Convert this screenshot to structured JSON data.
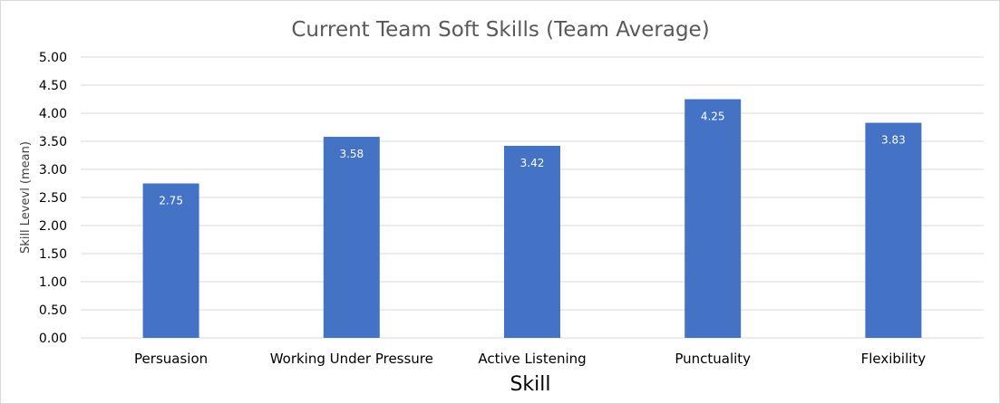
{
  "chart_data": {
    "type": "bar",
    "title": "Current Team Soft Skills (Team Average)",
    "xlabel": "Skill",
    "ylabel": "Skill Levevl (mean)",
    "categories": [
      "Persuasion",
      "Working Under Pressure",
      "Active Listening",
      "Punctuality",
      "Flexibility"
    ],
    "values": [
      2.75,
      3.58,
      3.42,
      4.25,
      3.83
    ],
    "data_labels": [
      "2.75",
      "3.58",
      "3.42",
      "4.25",
      "3.83"
    ],
    "ylim": [
      0,
      5
    ],
    "yticks": [
      "0.00",
      "0.50",
      "1.00",
      "1.50",
      "2.00",
      "2.50",
      "3.00",
      "3.50",
      "4.00",
      "4.50",
      "5.00"
    ],
    "grid": true,
    "legend": "none",
    "bar_color": "#4472C4"
  }
}
